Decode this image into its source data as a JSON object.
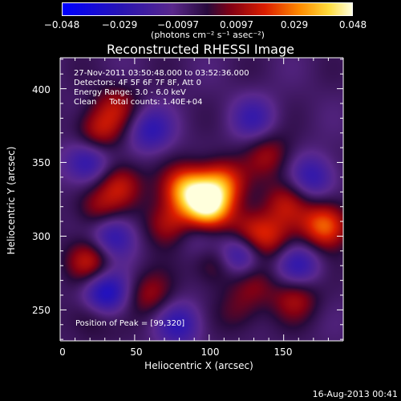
{
  "chart_data": {
    "type": "heatmap",
    "title": "Reconstructed RHESSI Image",
    "xlabel": "Heliocentric X (arcsec)",
    "ylabel": "Heliocentric Y (arcsec)",
    "xlim": [
      0,
      190
    ],
    "ylim": [
      229,
      421
    ],
    "xticks": [
      "0",
      "50",
      "100",
      "150"
    ],
    "yticks": [
      "250",
      "300",
      "350",
      "400"
    ],
    "colorbar": {
      "ticks": [
        "−0.048",
        "−0.029",
        "−0.0097",
        "0.0097",
        "0.029",
        "0.048"
      ],
      "range": [
        -0.048,
        0.048
      ],
      "unit_label": "(photons cm⁻² s⁻¹ asec⁻²)"
    },
    "annotations": {
      "line1": "27-Nov-2011 03:50:48.000 to 03:52:36.000",
      "line2": "Detectors: 4F 5F 6F 7F 8F, Att 0",
      "line3": "Energy Range: 3.0 - 6.0 keV",
      "line4": "Clean     Total counts: 1.40E+04",
      "peak": "Position of Peak = [99,320]"
    },
    "peak": [
      99,
      320
    ],
    "blobs": [
      {
        "x": 99,
        "y": 320,
        "v": 0.048
      },
      {
        "x": 85,
        "y": 332,
        "v": 0.036
      },
      {
        "x": 108,
        "y": 336,
        "v": 0.03
      },
      {
        "x": 72,
        "y": 308,
        "v": 0.02
      },
      {
        "x": 126,
        "y": 303,
        "v": 0.02
      },
      {
        "x": 140,
        "y": 298,
        "v": 0.018
      },
      {
        "x": 178,
        "y": 307,
        "v": 0.034
      },
      {
        "x": 20,
        "y": 283,
        "v": 0.022
      },
      {
        "x": 25,
        "y": 371,
        "v": 0.02
      },
      {
        "x": 38,
        "y": 388,
        "v": 0.016
      },
      {
        "x": 40,
        "y": 335,
        "v": 0.022
      },
      {
        "x": 25,
        "y": 318,
        "v": 0.016
      },
      {
        "x": 140,
        "y": 355,
        "v": 0.016
      },
      {
        "x": 152,
        "y": 323,
        "v": 0.018
      },
      {
        "x": 105,
        "y": 282,
        "v": 0.018
      },
      {
        "x": 60,
        "y": 260,
        "v": 0.016
      },
      {
        "x": 158,
        "y": 258,
        "v": 0.018
      },
      {
        "x": 130,
        "y": 268,
        "v": 0.012
      },
      {
        "x": 120,
        "y": 248,
        "v": 0.01
      },
      {
        "x": 20,
        "y": 245,
        "v": 0.012
      },
      {
        "x": 30,
        "y": 261,
        "v": -0.03
      },
      {
        "x": 120,
        "y": 287,
        "v": -0.03
      },
      {
        "x": 35,
        "y": 300,
        "v": -0.024
      },
      {
        "x": 18,
        "y": 350,
        "v": -0.024
      },
      {
        "x": 60,
        "y": 372,
        "v": -0.02
      },
      {
        "x": 160,
        "y": 280,
        "v": -0.02
      },
      {
        "x": 170,
        "y": 340,
        "v": -0.02
      },
      {
        "x": 80,
        "y": 240,
        "v": -0.02
      },
      {
        "x": 95,
        "y": 300,
        "v": -0.012
      },
      {
        "x": 130,
        "y": 380,
        "v": -0.016
      }
    ]
  },
  "footer": {
    "timestamp": "16-Aug-2013 00:41"
  }
}
